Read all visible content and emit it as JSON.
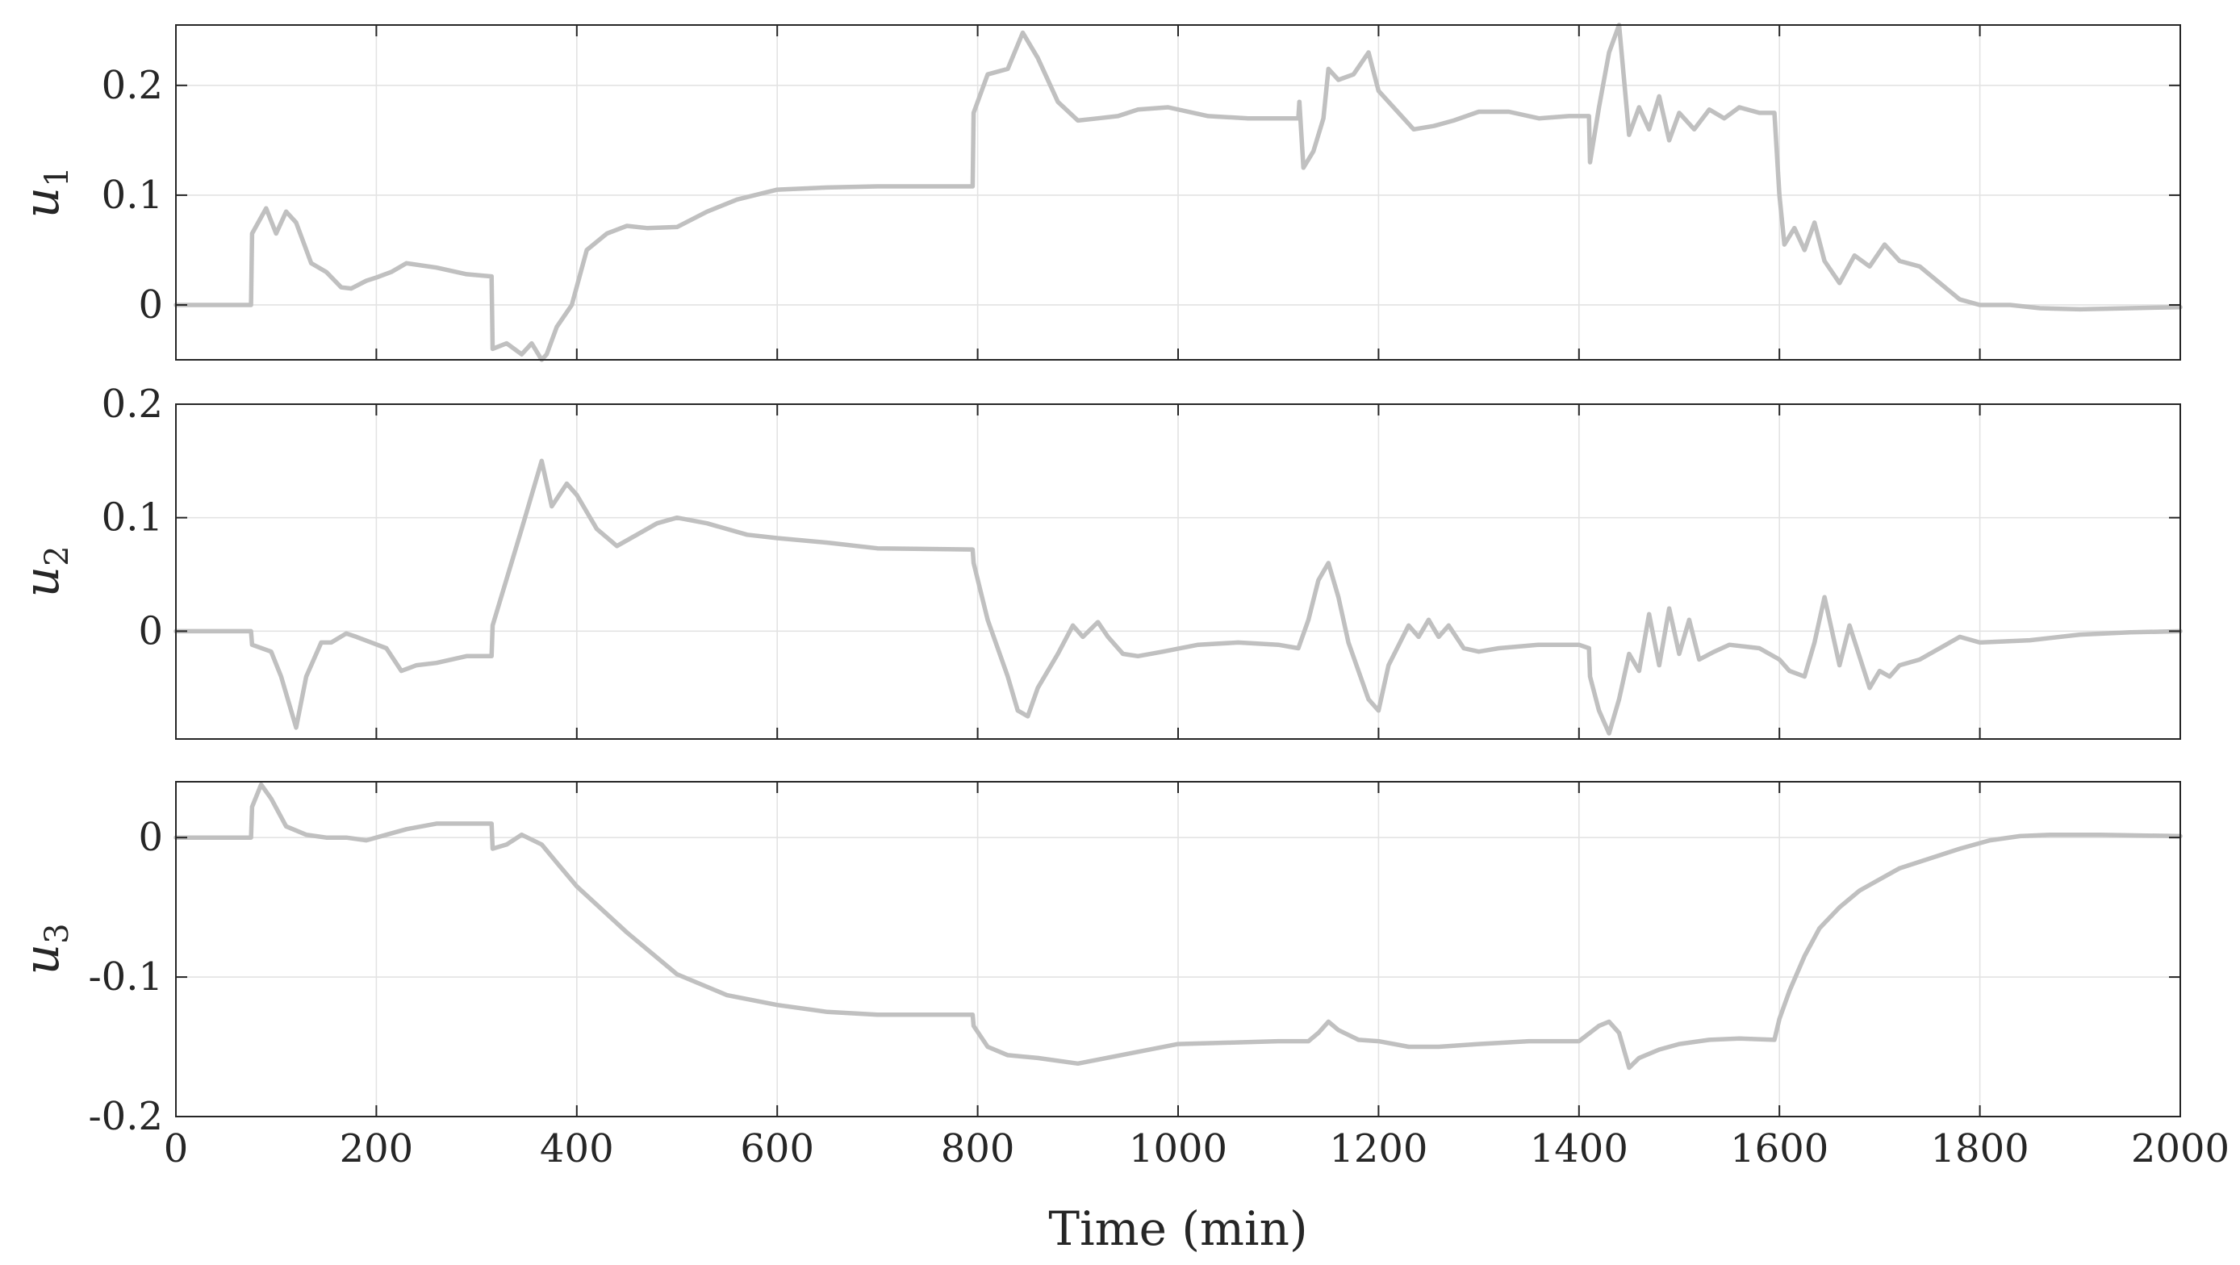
{
  "colors": {
    "series": "#c0c0c0",
    "axes": "#262626",
    "grid": "#e3e3e3"
  },
  "chart_data": [
    {
      "type": "line",
      "ylabel": "u",
      "ylabel_sub": "1",
      "xlim": [
        0,
        2000
      ],
      "ylim": [
        -0.05,
        0.255
      ],
      "yticks": [
        0,
        0.1,
        0.2
      ],
      "yticklabels": [
        "0",
        "0.1",
        "0.2"
      ],
      "grid": true,
      "series": [
        {
          "x": [
            0,
            75,
            76,
            90,
            100,
            110,
            120,
            135,
            150,
            165,
            175,
            190,
            200,
            215,
            230,
            260,
            290,
            315,
            316,
            330,
            345,
            355,
            365,
            370,
            380,
            395,
            410,
            430,
            450,
            470,
            500,
            530,
            560,
            600,
            650,
            700,
            795,
            796,
            810,
            830,
            845,
            860,
            880,
            900,
            920,
            940,
            960,
            990,
            1030,
            1070,
            1120,
            1121,
            1125,
            1135,
            1145,
            1150,
            1160,
            1175,
            1190,
            1200,
            1215,
            1235,
            1255,
            1275,
            1300,
            1330,
            1360,
            1390,
            1410,
            1411,
            1420,
            1430,
            1440,
            1450,
            1460,
            1470,
            1480,
            1490,
            1500,
            1515,
            1530,
            1545,
            1560,
            1580,
            1595,
            1600,
            1605,
            1615,
            1625,
            1635,
            1645,
            1660,
            1675,
            1690,
            1705,
            1720,
            1740,
            1760,
            1780,
            1800,
            1830,
            1860,
            1900,
            1950,
            2000
          ],
          "y": [
            0,
            0,
            0.065,
            0.088,
            0.065,
            0.085,
            0.075,
            0.038,
            0.03,
            0.016,
            0.015,
            0.022,
            0.025,
            0.03,
            0.038,
            0.034,
            0.028,
            0.026,
            -0.04,
            -0.035,
            -0.045,
            -0.035,
            -0.05,
            -0.045,
            -0.02,
            0.0,
            0.05,
            0.065,
            0.072,
            0.07,
            0.071,
            0.085,
            0.096,
            0.105,
            0.107,
            0.108,
            0.108,
            0.175,
            0.21,
            0.215,
            0.248,
            0.225,
            0.185,
            0.168,
            0.17,
            0.172,
            0.178,
            0.18,
            0.172,
            0.17,
            0.17,
            0.185,
            0.125,
            0.14,
            0.17,
            0.215,
            0.205,
            0.21,
            0.23,
            0.195,
            0.18,
            0.16,
            0.163,
            0.168,
            0.176,
            0.176,
            0.17,
            0.172,
            0.172,
            0.13,
            0.18,
            0.23,
            0.255,
            0.155,
            0.18,
            0.16,
            0.19,
            0.15,
            0.175,
            0.16,
            0.178,
            0.17,
            0.18,
            0.175,
            0.175,
            0.1,
            0.055,
            0.07,
            0.05,
            0.075,
            0.04,
            0.02,
            0.045,
            0.035,
            0.055,
            0.04,
            0.035,
            0.02,
            0.005,
            0.0,
            0.0,
            -0.003,
            -0.004,
            -0.003,
            -0.002
          ]
        }
      ]
    },
    {
      "type": "line",
      "ylabel": "u",
      "ylabel_sub": "2",
      "xlim": [
        0,
        2000
      ],
      "ylim": [
        -0.095,
        0.2
      ],
      "yticks": [
        0,
        0.1,
        0.2
      ],
      "yticklabels": [
        "0",
        "0.1",
        "0.2"
      ],
      "grid": true,
      "series": [
        {
          "x": [
            0,
            75,
            76,
            95,
            105,
            115,
            120,
            130,
            145,
            155,
            170,
            180,
            195,
            210,
            225,
            240,
            260,
            290,
            315,
            316,
            345,
            365,
            375,
            390,
            400,
            420,
            440,
            460,
            480,
            500,
            530,
            570,
            600,
            650,
            700,
            795,
            796,
            810,
            830,
            840,
            850,
            860,
            880,
            895,
            905,
            920,
            930,
            945,
            960,
            985,
            1020,
            1060,
            1100,
            1120,
            1130,
            1140,
            1150,
            1160,
            1170,
            1190,
            1200,
            1210,
            1230,
            1240,
            1250,
            1260,
            1270,
            1285,
            1300,
            1320,
            1360,
            1400,
            1410,
            1411,
            1420,
            1430,
            1440,
            1450,
            1460,
            1470,
            1480,
            1490,
            1500,
            1510,
            1520,
            1535,
            1550,
            1580,
            1600,
            1610,
            1625,
            1635,
            1645,
            1660,
            1670,
            1690,
            1700,
            1710,
            1720,
            1740,
            1760,
            1780,
            1800,
            1850,
            1900,
            1950,
            2000
          ],
          "y": [
            0,
            0,
            -0.012,
            -0.018,
            -0.04,
            -0.07,
            -0.085,
            -0.04,
            -0.01,
            -0.01,
            -0.002,
            -0.005,
            -0.01,
            -0.015,
            -0.035,
            -0.03,
            -0.028,
            -0.022,
            -0.022,
            0.005,
            0.09,
            0.15,
            0.11,
            0.13,
            0.12,
            0.09,
            0.075,
            0.085,
            0.095,
            0.1,
            0.095,
            0.085,
            0.082,
            0.078,
            0.073,
            0.072,
            0.06,
            0.01,
            -0.04,
            -0.07,
            -0.075,
            -0.05,
            -0.02,
            0.005,
            -0.005,
            0.008,
            -0.005,
            -0.02,
            -0.022,
            -0.018,
            -0.012,
            -0.01,
            -0.012,
            -0.015,
            0.01,
            0.045,
            0.06,
            0.03,
            -0.01,
            -0.06,
            -0.07,
            -0.03,
            0.005,
            -0.005,
            0.01,
            -0.005,
            0.005,
            -0.015,
            -0.018,
            -0.015,
            -0.012,
            -0.012,
            -0.015,
            -0.04,
            -0.07,
            -0.09,
            -0.06,
            -0.02,
            -0.035,
            0.015,
            -0.03,
            0.02,
            -0.02,
            0.01,
            -0.025,
            -0.018,
            -0.012,
            -0.015,
            -0.025,
            -0.035,
            -0.04,
            -0.01,
            0.03,
            -0.03,
            0.005,
            -0.05,
            -0.035,
            -0.04,
            -0.03,
            -0.025,
            -0.015,
            -0.005,
            -0.01,
            -0.008,
            -0.003,
            -0.001,
            0.0
          ]
        }
      ]
    },
    {
      "type": "line",
      "ylabel": "u",
      "ylabel_sub": "3",
      "xlim": [
        0,
        2000
      ],
      "ylim": [
        -0.2,
        0.04
      ],
      "yticks": [
        -0.2,
        -0.1,
        0
      ],
      "yticklabels": [
        "-0.2",
        "-0.1",
        "0"
      ],
      "grid": true,
      "series": [
        {
          "x": [
            0,
            75,
            76,
            85,
            95,
            110,
            130,
            150,
            170,
            190,
            210,
            230,
            260,
            290,
            315,
            316,
            330,
            345,
            365,
            380,
            400,
            450,
            500,
            550,
            600,
            650,
            700,
            750,
            795,
            796,
            810,
            830,
            860,
            900,
            950,
            1000,
            1050,
            1100,
            1120,
            1130,
            1140,
            1150,
            1160,
            1180,
            1200,
            1230,
            1260,
            1300,
            1350,
            1400,
            1420,
            1430,
            1440,
            1450,
            1460,
            1480,
            1500,
            1530,
            1560,
            1595,
            1600,
            1610,
            1625,
            1640,
            1660,
            1680,
            1700,
            1720,
            1750,
            1780,
            1810,
            1840,
            1870,
            1920,
            2000
          ],
          "y": [
            0,
            0,
            0.022,
            0.038,
            0.028,
            0.008,
            0.002,
            0.0,
            0.0,
            -0.002,
            0.002,
            0.006,
            0.01,
            0.01,
            0.01,
            -0.008,
            -0.005,
            0.002,
            -0.005,
            -0.018,
            -0.035,
            -0.068,
            -0.098,
            -0.113,
            -0.12,
            -0.125,
            -0.127,
            -0.127,
            -0.127,
            -0.135,
            -0.15,
            -0.156,
            -0.158,
            -0.162,
            -0.155,
            -0.148,
            -0.147,
            -0.146,
            -0.146,
            -0.146,
            -0.14,
            -0.132,
            -0.138,
            -0.145,
            -0.146,
            -0.15,
            -0.15,
            -0.148,
            -0.146,
            -0.146,
            -0.135,
            -0.132,
            -0.14,
            -0.165,
            -0.158,
            -0.152,
            -0.148,
            -0.145,
            -0.144,
            -0.145,
            -0.13,
            -0.11,
            -0.085,
            -0.065,
            -0.05,
            -0.038,
            -0.03,
            -0.022,
            -0.015,
            -0.008,
            -0.002,
            0.001,
            0.002,
            0.002,
            0.001
          ]
        }
      ]
    }
  ],
  "shared_x": {
    "xticks": [
      0,
      200,
      400,
      600,
      800,
      1000,
      1200,
      1400,
      1600,
      1800,
      2000
    ],
    "xticklabels": [
      "0",
      "200",
      "400",
      "600",
      "800",
      "1000",
      "1200",
      "1400",
      "1600",
      "1800",
      "2000"
    ],
    "xlabel": "Time (min)"
  }
}
